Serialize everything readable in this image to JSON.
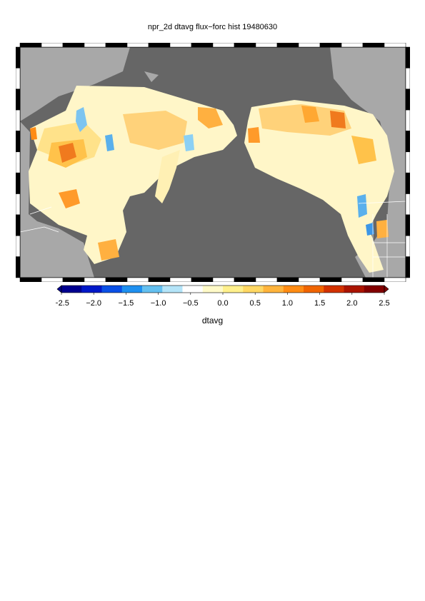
{
  "title": "npr_2d dtavg flux−forc hist 19480630",
  "map": {
    "ocean_color": "#666666",
    "land_color": "#a8a8a8",
    "border_color": "#ffffff"
  },
  "colorbar": {
    "label": "dtavg",
    "ticks": [
      "−2.5",
      "−2.0",
      "−1.5",
      "−1.0",
      "−0.5",
      "0.0",
      "0.5",
      "1.0",
      "1.5",
      "2.0",
      "2.5"
    ],
    "range": [
      -2.5,
      2.5
    ],
    "colors": [
      "#00008f",
      "#0018c8",
      "#0a50e6",
      "#1e90f0",
      "#64c0f0",
      "#b4e4f8",
      "#ffffff",
      "#fffac8",
      "#fff08c",
      "#ffd864",
      "#ffb43c",
      "#ff8c14",
      "#f06400",
      "#d23200",
      "#aa1400",
      "#820000"
    ]
  }
}
